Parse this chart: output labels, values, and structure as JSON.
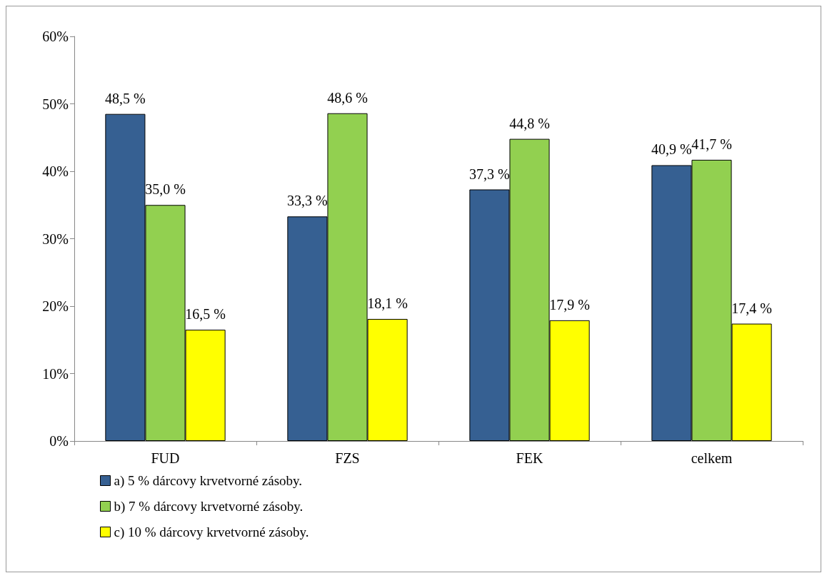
{
  "chart_data": {
    "type": "bar",
    "categories": [
      "FUD",
      "FZS",
      "FEK",
      "celkem"
    ],
    "series": [
      {
        "name": "a) 5 % dárcovy krvetvorné zásoby.",
        "color": "#366092",
        "values": [
          48.5,
          33.3,
          37.3,
          40.9
        ],
        "value_labels": [
          "48,5 %",
          "33,3 %",
          "37,3 %",
          "40,9 %"
        ]
      },
      {
        "name": "b) 7 % dárcovy krvetvorné zásoby.",
        "color": "#92d050",
        "values": [
          35.0,
          48.6,
          44.8,
          41.7
        ],
        "value_labels": [
          "35,0 %",
          "48,6 %",
          "44,8 %",
          "41,7 %"
        ]
      },
      {
        "name": "c) 10 % dárcovy krvetvorné zásoby.",
        "color": "#ffff00",
        "values": [
          16.5,
          18.1,
          17.9,
          17.4
        ],
        "value_labels": [
          "16,5 %",
          "18,1 %",
          "17,9 %",
          "17,4 %"
        ]
      }
    ],
    "ylim": [
      0,
      60
    ],
    "yticks": [
      {
        "value": 0,
        "label": "0%"
      },
      {
        "value": 10,
        "label": "10%"
      },
      {
        "value": 20,
        "label": "20%"
      },
      {
        "value": 30,
        "label": "30%"
      },
      {
        "value": 40,
        "label": "40%"
      },
      {
        "value": 50,
        "label": "50%"
      },
      {
        "value": 60,
        "label": "60%"
      }
    ],
    "grid": false,
    "legend": "bottom left"
  }
}
